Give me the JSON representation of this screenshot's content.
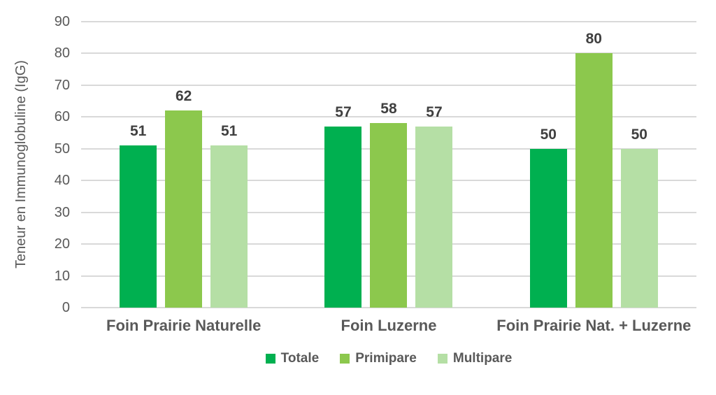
{
  "chart_data": {
    "type": "bar",
    "title": "",
    "xlabel": "",
    "ylabel": "Teneur en Immunoglobuline (IgG)",
    "ylim": [
      0,
      90
    ],
    "yticks": [
      0,
      10,
      20,
      30,
      40,
      50,
      60,
      70,
      80,
      90
    ],
    "grid": true,
    "legend_position": "bottom",
    "value_labels": true,
    "categories": [
      "Foin Prairie Naturelle",
      "Foin Luzerne",
      "Foin Prairie Nat. + Luzerne"
    ],
    "series": [
      {
        "name": "Totale",
        "color": "#00B050",
        "values": [
          51,
          57,
          50
        ]
      },
      {
        "name": "Primipare",
        "color": "#8CC84D",
        "values": [
          62,
          58,
          80
        ]
      },
      {
        "name": "Multipare",
        "color": "#B5DFA5",
        "values": [
          51,
          57,
          50
        ]
      }
    ]
  },
  "styles": {
    "gridline_color": "#d9d9d9",
    "axis_tick_color": "#595959",
    "value_label_color": "#404040",
    "category_label_color": "#595959",
    "legend_text_color": "#595959",
    "background": "#ffffff"
  }
}
